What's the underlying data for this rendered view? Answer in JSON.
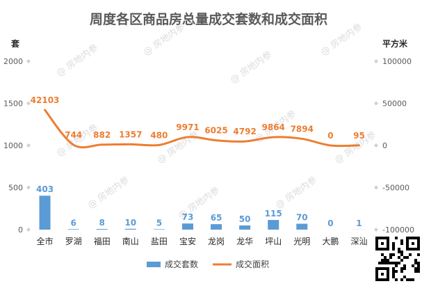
{
  "chart_data": {
    "type": "bar+line",
    "title": "周度各区商品房总量成交套数和成交面积",
    "left_unit": "套",
    "right_unit": "平方米",
    "categories": [
      "全市",
      "罗湖",
      "福田",
      "南山",
      "盐田",
      "宝安",
      "龙岗",
      "龙华",
      "坪山",
      "光明",
      "大鹏",
      "深汕"
    ],
    "left_axis": {
      "ticks": [
        "0",
        "500",
        "1000",
        "1500",
        "2000"
      ],
      "ylim": [
        0,
        2000
      ]
    },
    "right_axis": {
      "ticks": [
        "-100000",
        "-50000",
        "0",
        "50000",
        "100000"
      ],
      "ylim": [
        -100000,
        100000
      ]
    },
    "series": [
      {
        "name": "成交套数",
        "type": "bar",
        "axis": "left",
        "color": "#5b9bd5",
        "values": [
          403,
          6,
          8,
          10,
          5,
          73,
          65,
          50,
          115,
          70,
          0,
          1
        ]
      },
      {
        "name": "成交面积",
        "type": "line",
        "axis": "right",
        "color": "#ed7d31",
        "values": [
          42103,
          744,
          882,
          1357,
          480,
          9971,
          6025,
          4792,
          9864,
          7894,
          0,
          95
        ]
      }
    ],
    "legend": [
      "成交套数",
      "成交面积"
    ],
    "legend_position": "bottom",
    "watermark": "房地内参"
  }
}
